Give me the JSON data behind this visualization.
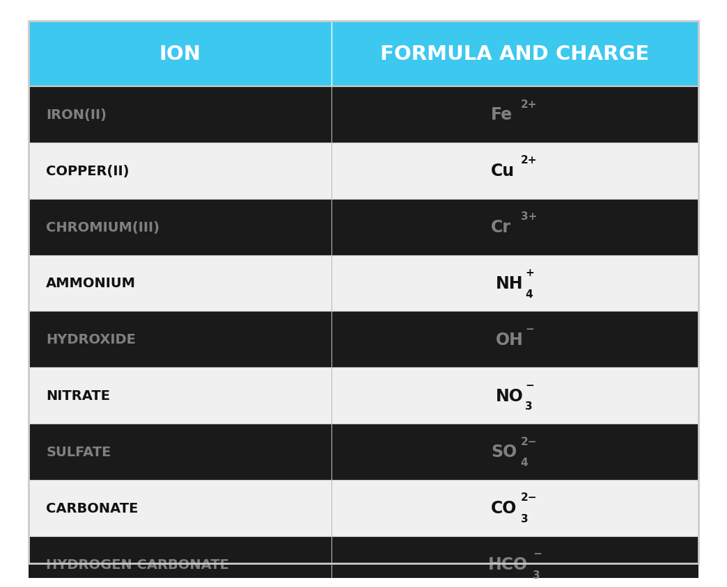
{
  "title_col1": "ION",
  "title_col2": "FORMULA AND CHARGE",
  "header_bg": "#3DC8F0",
  "header_text_color": "#FFFFFF",
  "rows": [
    {
      "ion": "IRON(II)",
      "formula": "Fe",
      "charge": "2+",
      "subscript": "",
      "dark": true
    },
    {
      "ion": "COPPER(II)",
      "formula": "Cu",
      "charge": "2+",
      "subscript": "",
      "dark": false
    },
    {
      "ion": "CHROMIUM(III)",
      "formula": "Cr",
      "charge": "3+",
      "subscript": "",
      "dark": true
    },
    {
      "ion": "AMMONIUM",
      "formula": "NH",
      "charge": "+",
      "subscript": "4",
      "dark": false
    },
    {
      "ion": "HYDROXIDE",
      "formula": "OH",
      "charge": "−",
      "subscript": "",
      "dark": true
    },
    {
      "ion": "NITRATE",
      "formula": "NO",
      "charge": "−",
      "subscript": "3",
      "dark": false
    },
    {
      "ion": "SULFATE",
      "formula": "SO",
      "charge": "2−",
      "subscript": "4",
      "dark": true
    },
    {
      "ion": "CARBONATE",
      "formula": "CO",
      "charge": "2−",
      "subscript": "3",
      "dark": false
    },
    {
      "ion": "HYDROGEN CARBONATE",
      "formula": "HCO",
      "charge": "−",
      "subscript": "3",
      "dark": true
    }
  ],
  "dark_row_bg": "#1A1A1A",
  "light_row_bg": "#F0F0F0",
  "dark_text_color": "#808080",
  "light_text_color": "#111111",
  "col_divider": "#BBBBBB",
  "row_divider": "#CCCCCC"
}
